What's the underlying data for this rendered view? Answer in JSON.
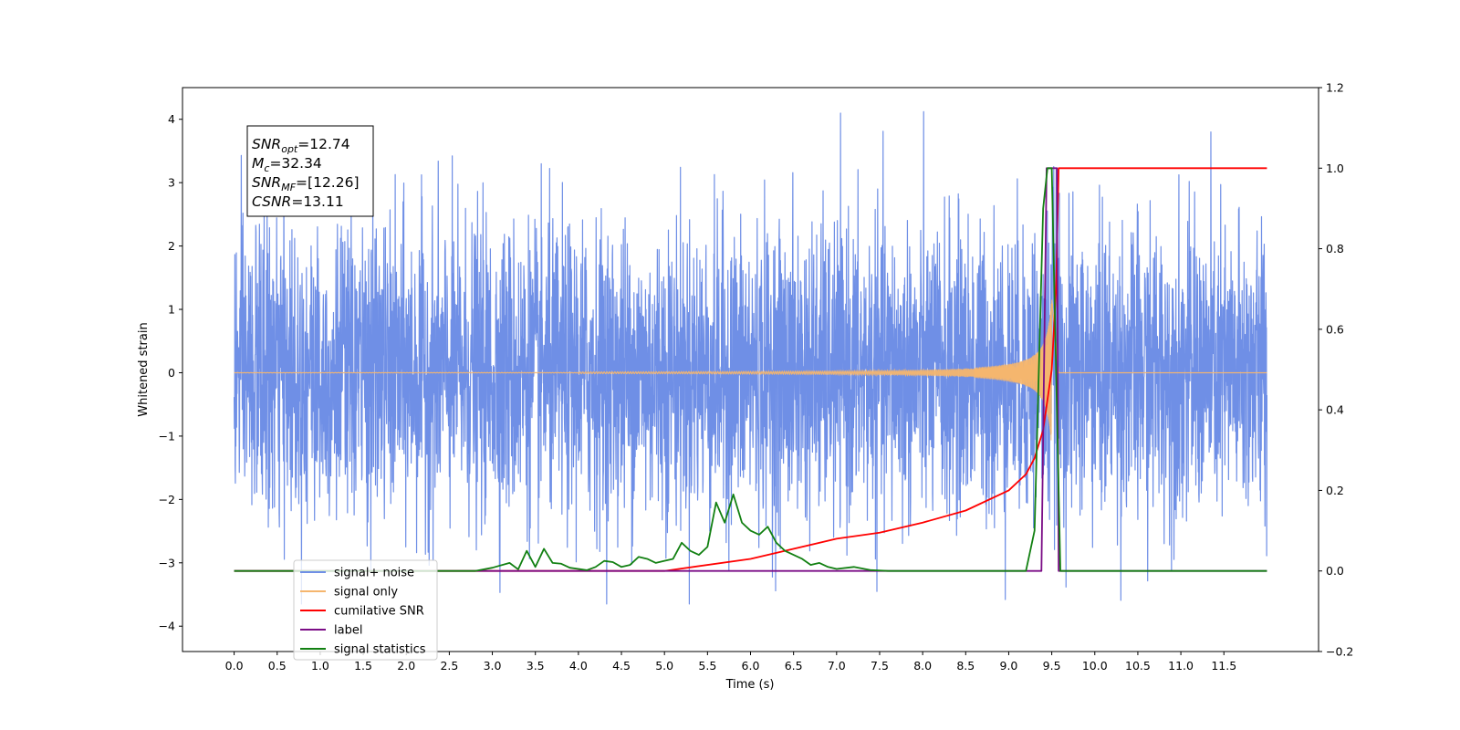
{
  "chart_data": {
    "type": "line",
    "xlabel": "Time (s)",
    "ylabel_left": "Whitened strain",
    "ylabel_right": "",
    "xlim": [
      -0.6,
      12.6
    ],
    "ylim_left": [
      -4.4,
      4.5
    ],
    "ylim_right": [
      -0.2,
      1.2
    ],
    "x_ticks": [
      "0.0",
      "0.5",
      "1.0",
      "1.5",
      "2.0",
      "2.5",
      "3.0",
      "3.5",
      "4.0",
      "4.5",
      "5.0",
      "5.5",
      "6.0",
      "6.5",
      "7.0",
      "7.5",
      "8.0",
      "8.5",
      "9.0",
      "9.5",
      "10.0",
      "10.5",
      "11.0",
      "11.5"
    ],
    "y_ticks_left": [
      "4",
      "3",
      "2",
      "1",
      "0",
      "−1",
      "−2",
      "−3",
      "−4"
    ],
    "y_ticks_right": [
      "1.2",
      "1.0",
      "0.8",
      "0.6",
      "0.4",
      "0.2",
      "0.0",
      "−0.2"
    ],
    "grid": false,
    "legend_position": "lower-left",
    "annotation": {
      "lines": [
        {
          "sym": "SNR",
          "sub": "opt",
          "value": "=12.74"
        },
        {
          "sym": "M",
          "sub": "c",
          "value": "=32.34"
        },
        {
          "sym": "SNR",
          "sub": "MF",
          "value": "=[12.26]"
        },
        {
          "sym": "CSNR",
          "sub": "",
          "value": "=13.11"
        }
      ]
    },
    "series": [
      {
        "name": "signal+ noise",
        "axis": "left",
        "color": "#6f8fe6",
        "kind": "gaussian-noise-plus-chirp",
        "x_range": [
          0.0,
          12.0
        ],
        "std": 1.15,
        "range": [
          -3.65,
          4.12
        ]
      },
      {
        "name": "signal only",
        "axis": "left",
        "color": "#f5b66e",
        "kind": "chirp",
        "x_range": [
          0.0,
          12.0
        ],
        "merger_time": 9.5,
        "peak_amplitude": 1.2,
        "start_visible_time": 4.0,
        "ringdown_end": 9.58
      },
      {
        "name": "cumilative SNR",
        "axis": "right",
        "color": "#ff0000",
        "x": [
          0.0,
          2.0,
          4.0,
          5.0,
          6.0,
          7.0,
          7.5,
          8.0,
          8.5,
          9.0,
          9.2,
          9.3,
          9.4,
          9.5,
          9.55,
          9.58,
          12.0
        ],
        "values": [
          0.0,
          0.0,
          0.0,
          0.0,
          0.03,
          0.08,
          0.095,
          0.12,
          0.15,
          0.2,
          0.24,
          0.28,
          0.35,
          0.5,
          0.7,
          1.0,
          1.0
        ]
      },
      {
        "name": "label",
        "axis": "right",
        "color": "#7b0d86",
        "x": [
          0.0,
          9.38,
          9.44,
          9.56,
          9.58,
          12.0
        ],
        "values": [
          0.0,
          0.0,
          1.0,
          1.0,
          0.0,
          0.0
        ]
      },
      {
        "name": "signal statistics",
        "axis": "right",
        "color": "#128012",
        "x": [
          0.0,
          2.8,
          3.0,
          3.2,
          3.3,
          3.4,
          3.5,
          3.6,
          3.7,
          3.8,
          3.9,
          4.0,
          4.1,
          4.2,
          4.3,
          4.4,
          4.5,
          4.6,
          4.7,
          4.8,
          4.9,
          5.0,
          5.1,
          5.2,
          5.3,
          5.4,
          5.5,
          5.6,
          5.7,
          5.8,
          5.9,
          6.0,
          6.1,
          6.2,
          6.3,
          6.4,
          6.5,
          6.6,
          6.7,
          6.8,
          6.9,
          7.0,
          7.2,
          7.4,
          7.6,
          8.0,
          9.0,
          9.2,
          9.3,
          9.35,
          9.4,
          9.45,
          9.5,
          9.55,
          9.6,
          12.0
        ],
        "values": [
          0.0,
          0.0,
          0.008,
          0.02,
          0.004,
          0.05,
          0.01,
          0.055,
          0.02,
          0.018,
          0.008,
          0.005,
          0.002,
          0.01,
          0.025,
          0.022,
          0.01,
          0.015,
          0.035,
          0.03,
          0.02,
          0.025,
          0.03,
          0.07,
          0.05,
          0.04,
          0.06,
          0.17,
          0.12,
          0.19,
          0.12,
          0.1,
          0.09,
          0.11,
          0.07,
          0.05,
          0.04,
          0.03,
          0.015,
          0.02,
          0.01,
          0.005,
          0.01,
          0.002,
          0.0,
          0.0,
          0.0,
          0.0,
          0.1,
          0.5,
          0.9,
          1.0,
          1.0,
          0.5,
          0.0,
          0.0
        ]
      }
    ]
  }
}
